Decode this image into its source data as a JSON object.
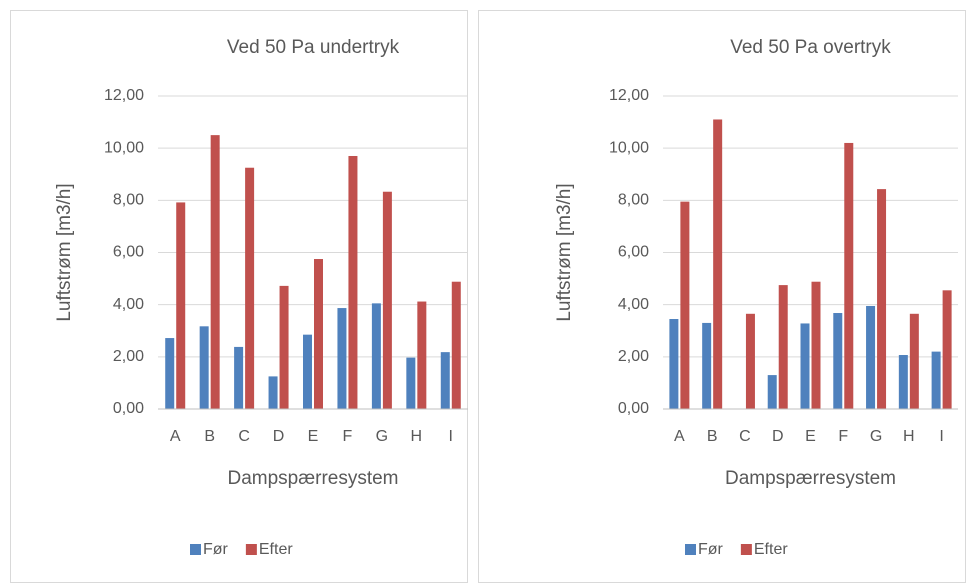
{
  "chart_data": [
    {
      "type": "bar",
      "title": "Ved 50 Pa undertryk",
      "x_label": "Dampspærresystem",
      "y_label": "Luftstrøm [m3/h]",
      "categories": [
        "A",
        "B",
        "C",
        "D",
        "E",
        "F",
        "G",
        "H",
        "I"
      ],
      "series": [
        {
          "name": "Før",
          "color": "#4f81bd",
          "values": [
            2.72,
            3.17,
            2.38,
            1.25,
            2.85,
            3.87,
            4.05,
            1.97,
            2.18
          ]
        },
        {
          "name": "Efter",
          "color": "#c0504d",
          "values": [
            7.92,
            10.5,
            9.25,
            4.72,
            5.75,
            9.7,
            8.33,
            4.12,
            4.88
          ]
        }
      ],
      "ylim": [
        0,
        12
      ],
      "yticks": [
        {
          "value": 0,
          "label": "0,00"
        },
        {
          "value": 2,
          "label": "2,00"
        },
        {
          "value": 4,
          "label": "4,00"
        },
        {
          "value": 6,
          "label": "6,00"
        },
        {
          "value": 8,
          "label": "8,00"
        },
        {
          "value": 10,
          "label": "10,00"
        },
        {
          "value": 12,
          "label": "12,00"
        }
      ],
      "grid": true,
      "legend": "bottom"
    },
    {
      "type": "bar",
      "title": "Ved 50 Pa overtryk",
      "x_label": "Dampspærresystem",
      "y_label": "Luftstrøm [m3/h]",
      "categories": [
        "A",
        "B",
        "C",
        "D",
        "E",
        "F",
        "G",
        "H",
        "I"
      ],
      "series": [
        {
          "name": "Før",
          "color": "#4f81bd",
          "values": [
            3.45,
            3.3,
            null,
            1.3,
            3.28,
            3.68,
            3.95,
            2.07,
            2.2
          ]
        },
        {
          "name": "Efter",
          "color": "#c0504d",
          "values": [
            7.95,
            11.1,
            3.65,
            4.75,
            4.88,
            10.2,
            8.43,
            3.65,
            4.55
          ]
        }
      ],
      "ylim": [
        0,
        12
      ],
      "yticks": [
        {
          "value": 0,
          "label": "0,00"
        },
        {
          "value": 2,
          "label": "2,00"
        },
        {
          "value": 4,
          "label": "4,00"
        },
        {
          "value": 6,
          "label": "6,00"
        },
        {
          "value": 8,
          "label": "8,00"
        },
        {
          "value": 10,
          "label": "10,00"
        },
        {
          "value": 12,
          "label": "12,00"
        }
      ],
      "grid": true,
      "legend": "bottom"
    }
  ]
}
